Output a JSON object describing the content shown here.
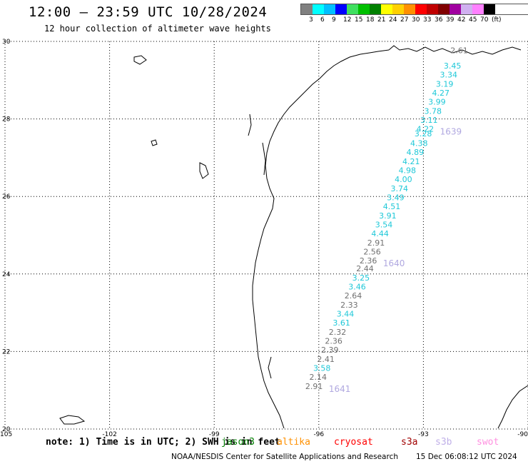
{
  "header": {
    "title": "12:00 – 23:59 UTC 10/28/2024",
    "subtitle": "12 hour collection of altimeter wave heights"
  },
  "legend": {
    "unit": "(ft)",
    "bins": [
      {
        "label": "3",
        "color": "#808080"
      },
      {
        "label": "6",
        "color": "#00ffff"
      },
      {
        "label": "9",
        "color": "#00bfff"
      },
      {
        "label": "12",
        "color": "#0000ff"
      },
      {
        "label": "15",
        "color": "#40e060"
      },
      {
        "label": "18",
        "color": "#00c000"
      },
      {
        "label": "21",
        "color": "#008000"
      },
      {
        "label": "24",
        "color": "#ffff00"
      },
      {
        "label": "27",
        "color": "#ffd000"
      },
      {
        "label": "30",
        "color": "#ff9000"
      },
      {
        "label": "33",
        "color": "#ff0000"
      },
      {
        "label": "36",
        "color": "#c00000"
      },
      {
        "label": "39",
        "color": "#800000"
      },
      {
        "label": "42",
        "color": "#a000a0"
      },
      {
        "label": "45",
        "color": "#d0b0f0"
      },
      {
        "label": "70",
        "color": "#ff80ff"
      },
      {
        "label": "",
        "color": "#000000"
      }
    ]
  },
  "axes": {
    "lon_ticks": [
      "-105",
      "-102",
      "-99",
      "-96",
      "-93",
      "-90"
    ],
    "lat_ticks": [
      "30",
      "28",
      "26",
      "24",
      "22",
      "20"
    ],
    "lon_range": [
      -105,
      -90
    ],
    "lat_range": [
      20,
      30
    ]
  },
  "track": {
    "colors": {
      "cyan": "#1ec8d8",
      "gray": "#707070",
      "lavender": "#b0a8e0"
    },
    "labels": [
      {
        "lat": 29.7,
        "text": "2.61",
        "color": "gray"
      },
      {
        "lat": 29.3,
        "text": "3.45",
        "color": "cyan"
      },
      {
        "lat": 29.07,
        "text": "3.34",
        "color": "cyan"
      },
      {
        "lat": 28.83,
        "text": "3.19",
        "color": "cyan"
      },
      {
        "lat": 28.6,
        "text": "4.27",
        "color": "cyan"
      },
      {
        "lat": 28.37,
        "text": "3.99",
        "color": "cyan"
      },
      {
        "lat": 28.13,
        "text": "3.78",
        "color": "cyan"
      },
      {
        "lat": 27.9,
        "text": "3.11",
        "color": "cyan"
      },
      {
        "lat": 27.67,
        "text": "4.22",
        "color": "cyan"
      },
      {
        "lat": 27.55,
        "text": "3.28",
        "color": "cyan"
      },
      {
        "lat": 27.3,
        "text": "4.38",
        "color": "cyan"
      },
      {
        "lat": 27.07,
        "text": "4.89",
        "color": "cyan"
      },
      {
        "lat": 26.83,
        "text": "4.21",
        "color": "cyan"
      },
      {
        "lat": 26.6,
        "text": "4.98",
        "color": "cyan"
      },
      {
        "lat": 26.37,
        "text": "4.00",
        "color": "cyan"
      },
      {
        "lat": 26.13,
        "text": "3.74",
        "color": "cyan"
      },
      {
        "lat": 25.9,
        "text": "3.49",
        "color": "cyan"
      },
      {
        "lat": 25.67,
        "text": "4.51",
        "color": "cyan"
      },
      {
        "lat": 25.43,
        "text": "3.91",
        "color": "cyan"
      },
      {
        "lat": 25.2,
        "text": "3.54",
        "color": "cyan"
      },
      {
        "lat": 24.97,
        "text": "4.44",
        "color": "cyan"
      },
      {
        "lat": 24.73,
        "text": "2.91",
        "color": "gray"
      },
      {
        "lat": 24.5,
        "text": "2.56",
        "color": "gray"
      },
      {
        "lat": 24.27,
        "text": "2.36",
        "color": "gray"
      },
      {
        "lat": 24.07,
        "text": "2.44",
        "color": "gray"
      },
      {
        "lat": 23.83,
        "text": "3.25",
        "color": "cyan"
      },
      {
        "lat": 23.6,
        "text": "3.46",
        "color": "cyan"
      },
      {
        "lat": 23.37,
        "text": "2.64",
        "color": "gray"
      },
      {
        "lat": 23.13,
        "text": "2.33",
        "color": "gray"
      },
      {
        "lat": 22.9,
        "text": "3.44",
        "color": "cyan"
      },
      {
        "lat": 22.67,
        "text": "3.61",
        "color": "cyan"
      },
      {
        "lat": 22.43,
        "text": "2.32",
        "color": "gray"
      },
      {
        "lat": 22.2,
        "text": "2.36",
        "color": "gray"
      },
      {
        "lat": 21.97,
        "text": "2.39",
        "color": "gray"
      },
      {
        "lat": 21.73,
        "text": "2.41",
        "color": "gray"
      },
      {
        "lat": 21.5,
        "text": "3.58",
        "color": "cyan"
      },
      {
        "lat": 21.27,
        "text": "2.14",
        "color": "gray"
      },
      {
        "lat": 21.03,
        "text": "2.91",
        "color": "gray"
      }
    ],
    "times": [
      {
        "lat": 27.67,
        "text": "1639"
      },
      {
        "lat": 24.27,
        "text": "1640"
      },
      {
        "lat": 21.03,
        "text": "1641"
      }
    ]
  },
  "footer": {
    "note": "note: 1) Time is in UTC; 2) SWH is in feet",
    "satellites": [
      {
        "name": "jason3",
        "color": "#008000"
      },
      {
        "name": "altika",
        "color": "#ff9000"
      },
      {
        "name": "cryosat",
        "color": "#ff0000"
      },
      {
        "name": "s3a",
        "color": "#a00000"
      },
      {
        "name": "s3b",
        "color": "#c0b0e8"
      },
      {
        "name": "swot",
        "color": "#ff90e0"
      }
    ],
    "credit": "NOAA/NESDIS Center for Satellite Applications and Research",
    "timestamp": "15 Dec 06:08:12 UTC 2024"
  }
}
